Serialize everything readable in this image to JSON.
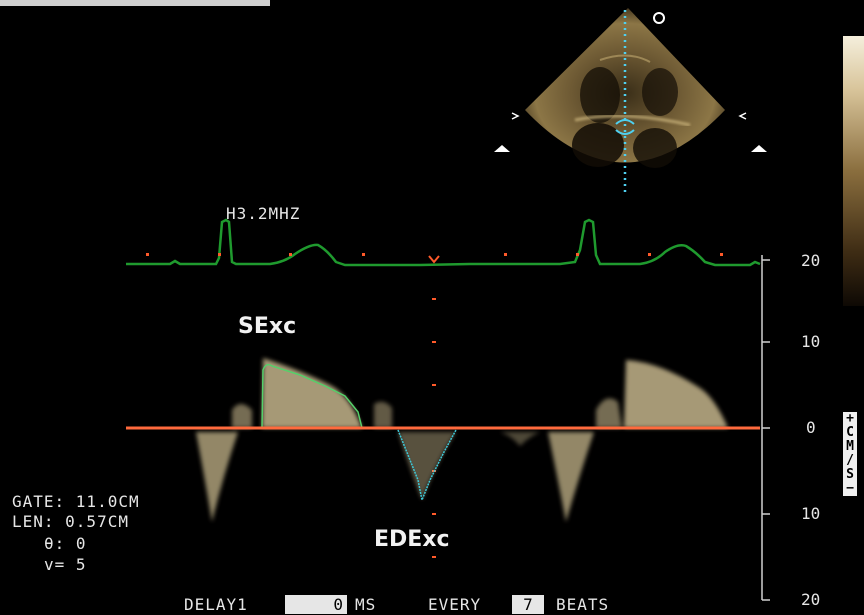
{
  "frequency": "H3.2MHZ",
  "labels": {
    "systolic": "SExc",
    "diastolic": "EDExc"
  },
  "probe_marker": "o",
  "scale": {
    "ticks": [
      "20",
      "10",
      "0",
      "10",
      "20"
    ],
    "unit_chars": [
      "+",
      "C",
      "M",
      "/",
      "S",
      "−"
    ]
  },
  "settings": {
    "gate": "GATE: 11.0CM",
    "len": "LEN: 0.57CM",
    "angle": "θ: 0",
    "v": "v= 5"
  },
  "footer": {
    "delay_label": "DELAY1",
    "delay_value": "0",
    "delay_unit": "MS",
    "every_label": "EVERY",
    "every_value": "7",
    "beats_label": "BEATS"
  },
  "colors": {
    "ecg": "#1f9a2e",
    "baseline": "#ff6a3d",
    "doppler_signal": "#d9c89a",
    "colorbar_top": "#f3ecd6",
    "colorbar_bottom": "#1a1206",
    "trace_cyan": "#3fc9d8"
  }
}
